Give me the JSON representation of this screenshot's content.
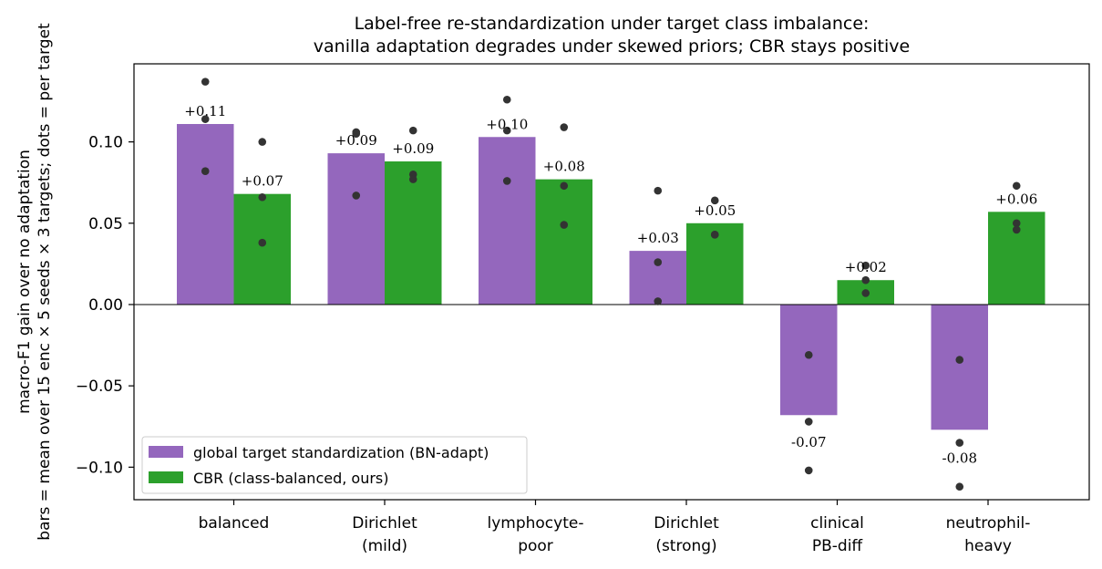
{
  "chart_data": {
    "type": "bar",
    "title": [
      "Label-free re-standardization under target class imbalance:",
      "vanilla adaptation degrades under skewed priors; CBR stays positive"
    ],
    "xlabel": "",
    "ylabel": [
      "bars = mean over 15 enc × 5 seeds × 3 targets; dots = per target",
      "macro-F1 gain over no adaptation"
    ],
    "categories": [
      [
        "balanced"
      ],
      [
        "Dirichlet",
        "(mild)"
      ],
      [
        "lymphocyte-",
        "poor"
      ],
      [
        "Dirichlet",
        "(strong)"
      ],
      [
        "clinical",
        "PB-diff"
      ],
      [
        "neutrophil-",
        "heavy"
      ]
    ],
    "ylim": [
      -0.12,
      0.148
    ],
    "yticks": [
      -0.1,
      -0.05,
      0.0,
      0.05,
      0.1
    ],
    "ytick_labels": [
      "−0.10",
      "−0.05",
      "0.00",
      "0.05",
      "0.10"
    ],
    "grid": false,
    "legend_position": "lower-left",
    "series": [
      {
        "name": "global target standardization (BN-adapt)",
        "color": "#9467bd",
        "values": [
          0.111,
          0.093,
          0.103,
          0.033,
          -0.068,
          -0.077
        ],
        "labels": [
          "+0.11",
          "+0.09",
          "+0.10",
          "+0.03",
          "-0.07",
          "-0.08"
        ],
        "dots": [
          [
            0.137,
            0.114,
            0.082
          ],
          [
            0.106,
            0.105,
            0.067
          ],
          [
            0.126,
            0.107,
            0.076
          ],
          [
            0.07,
            0.026,
            0.002
          ],
          [
            -0.031,
            -0.072,
            -0.102
          ],
          [
            -0.034,
            -0.085,
            -0.112
          ]
        ]
      },
      {
        "name": "CBR (class-balanced, ours)",
        "color": "#2ca02c",
        "values": [
          0.068,
          0.088,
          0.077,
          0.05,
          0.015,
          0.057
        ],
        "labels": [
          "+0.07",
          "+0.09",
          "+0.08",
          "+0.05",
          "+0.02",
          "+0.06"
        ],
        "dots": [
          [
            0.1,
            0.066,
            0.038
          ],
          [
            0.107,
            0.08,
            0.077
          ],
          [
            0.109,
            0.073,
            0.049
          ],
          [
            0.064,
            0.043,
            0.043
          ],
          [
            0.024,
            0.015,
            0.007
          ],
          [
            0.073,
            0.05,
            0.046
          ]
        ]
      }
    ]
  }
}
